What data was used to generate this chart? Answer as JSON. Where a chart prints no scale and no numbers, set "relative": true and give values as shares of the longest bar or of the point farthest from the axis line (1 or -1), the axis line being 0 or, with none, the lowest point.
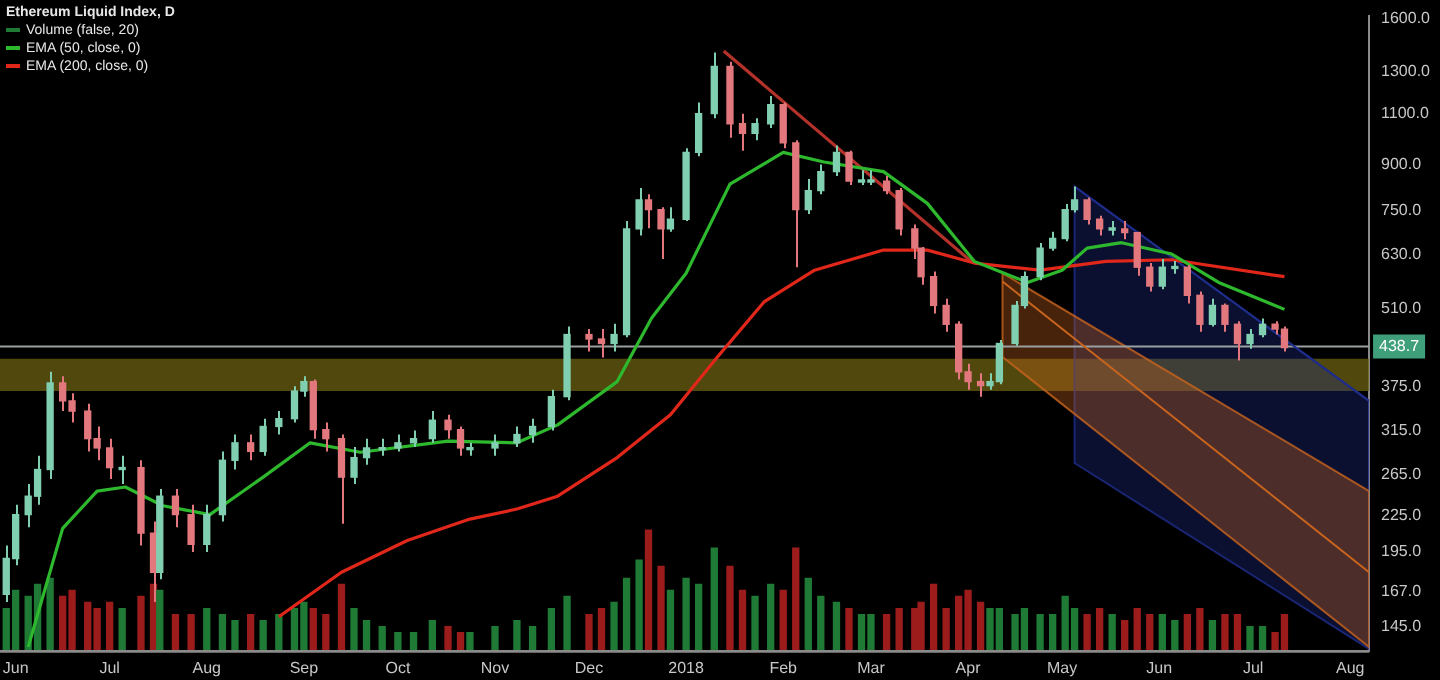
{
  "chart_data": [
    {
      "type": "candlestick",
      "title": "Ethereum Liquid Index, D",
      "x": [
        "2017-05-29",
        "2017-06-01",
        "2017-06-05",
        "2017-06-08",
        "2017-06-12",
        "2017-06-16",
        "2017-06-19",
        "2017-06-24",
        "2017-06-27",
        "2017-07-01",
        "2017-07-05",
        "2017-07-11",
        "2017-07-15",
        "2017-07-17",
        "2017-07-22",
        "2017-07-27",
        "2017-08-01",
        "2017-08-06",
        "2017-08-10",
        "2017-08-15",
        "2017-08-19",
        "2017-08-24",
        "2017-08-29",
        "2017-09-01",
        "2017-09-04",
        "2017-09-08",
        "2017-09-13",
        "2017-09-17",
        "2017-09-21",
        "2017-09-26",
        "2017-10-01",
        "2017-10-06",
        "2017-10-12",
        "2017-10-17",
        "2017-10-21",
        "2017-10-24",
        "2017-11-01",
        "2017-11-08",
        "2017-11-13",
        "2017-11-19",
        "2017-11-24",
        "2017-12-01",
        "2017-12-05",
        "2017-12-09",
        "2017-12-13",
        "2017-12-17",
        "2017-12-20",
        "2017-12-24",
        "2017-12-27",
        "2018-01-01",
        "2018-01-05",
        "2018-01-10",
        "2018-01-15",
        "2018-01-19",
        "2018-01-23",
        "2018-01-28",
        "2018-02-01",
        "2018-02-05",
        "2018-02-09",
        "2018-02-13",
        "2018-02-18",
        "2018-02-22",
        "2018-02-26",
        "2018-03-01",
        "2018-03-06",
        "2018-03-10",
        "2018-03-15",
        "2018-03-17",
        "2018-03-21",
        "2018-03-25",
        "2018-03-29",
        "2018-04-01",
        "2018-04-05",
        "2018-04-08",
        "2018-04-11",
        "2018-04-16",
        "2018-04-19",
        "2018-04-24",
        "2018-04-28",
        "2018-05-02",
        "2018-05-05",
        "2018-05-09",
        "2018-05-13",
        "2018-05-17",
        "2018-05-21",
        "2018-05-25",
        "2018-05-29",
        "2018-06-02",
        "2018-06-06",
        "2018-06-10",
        "2018-06-14",
        "2018-06-18",
        "2018-06-22",
        "2018-06-26",
        "2018-06-30",
        "2018-07-04",
        "2018-07-08",
        "2018-07-11"
      ],
      "series": [
        {
          "type": "candlestick",
          "colors": [
            "#7fcfb0",
            "#7fcfb0",
            "#7fcfb0",
            "#7fcfb0",
            "#7fcfb0",
            "#e2777d",
            "#e2777d",
            "#e2777d",
            "#e2777d",
            "#e2777d",
            "#7fcfb0",
            "#e2777d",
            "#e2777d",
            "#7fcfb0",
            "#e2777d",
            "#e2777d",
            "#7fcfb0",
            "#7fcfb0",
            "#7fcfb0",
            "#e2777d",
            "#7fcfb0",
            "#7fcfb0",
            "#7fcfb0",
            "#7fcfb0",
            "#e2777d",
            "#e2777d",
            "#e2777d",
            "#7fcfb0",
            "#7fcfb0",
            "#7fcfb0",
            "#7fcfb0",
            "#7fcfb0",
            "#7fcfb0",
            "#e2777d",
            "#e2777d",
            "#7fcfb0",
            "#7fcfb0",
            "#7fcfb0",
            "#7fcfb0",
            "#7fcfb0",
            "#7fcfb0",
            "#e2777d",
            "#e2777d",
            "#7fcfb0",
            "#7fcfb0",
            "#7fcfb0",
            "#e2777d",
            "#e2777d",
            "#7fcfb0",
            "#7fcfb0",
            "#7fcfb0",
            "#7fcfb0",
            "#e2777d",
            "#e2777d",
            "#7fcfb0",
            "#7fcfb0",
            "#e2777d",
            "#e2777d",
            "#7fcfb0",
            "#7fcfb0",
            "#7fcfb0",
            "#e2777d",
            "#7fcfb0",
            "#7fcfb0",
            "#e2777d",
            "#e2777d",
            "#e2777d",
            "#e2777d",
            "#e2777d",
            "#e2777d",
            "#e2777d",
            "#e2777d",
            "#e2777d",
            "#7fcfb0",
            "#7fcfb0",
            "#7fcfb0",
            "#7fcfb0",
            "#7fcfb0",
            "#7fcfb0",
            "#7fcfb0",
            "#7fcfb0",
            "#e2777d",
            "#e2777d",
            "#7fcfb0",
            "#e2777d",
            "#e2777d",
            "#e2777d",
            "#7fcfb0",
            "#7fcfb0",
            "#e2777d",
            "#e2777d",
            "#7fcfb0",
            "#e2777d",
            "#e2777d",
            "#7fcfb0",
            "#7fcfb0",
            "#e2777d",
            "#e2777d"
          ],
          "ohlc": [
            [
              165,
              200,
              160,
              190
            ],
            [
              190,
              235,
              185,
              226
            ],
            [
              226,
              255,
              215,
              243
            ],
            [
              243,
              285,
              235,
              270
            ],
            [
              270,
              397,
              260,
              380
            ],
            [
              380,
              390,
              340,
              354
            ],
            [
              354,
              365,
              325,
              340
            ],
            [
              340,
              350,
              290,
              305
            ],
            [
              305,
              320,
              280,
              294
            ],
            [
              294,
              305,
              260,
              272
            ],
            [
              270,
              285,
              255,
              272
            ],
            [
              272,
              280,
              200,
              210
            ],
            [
              210,
              220,
              160,
              180
            ],
            [
              180,
              250,
              175,
              243
            ],
            [
              243,
              250,
              215,
              226
            ],
            [
              226,
              235,
              195,
              201
            ],
            [
              201,
              235,
              195,
              226
            ],
            [
              226,
              290,
              220,
              280
            ],
            [
              280,
              310,
              270,
              300
            ],
            [
              300,
              310,
              280,
              290
            ],
            [
              290,
              330,
              285,
              320
            ],
            [
              320,
              340,
              310,
              330
            ],
            [
              330,
              375,
              325,
              368
            ],
            [
              368,
              390,
              360,
              382
            ],
            [
              382,
              385,
              305,
              316
            ],
            [
              316,
              325,
              290,
              305
            ],
            [
              305,
              310,
              218,
              262
            ],
            [
              262,
              295,
              255,
              283
            ],
            [
              283,
              305,
              275,
              294
            ],
            [
              292,
              305,
              285,
              294
            ],
            [
              294,
              310,
              290,
              300
            ],
            [
              300,
              315,
              295,
              305
            ],
            [
              305,
              340,
              300,
              328
            ],
            [
              328,
              335,
              305,
              316
            ],
            [
              316,
              320,
              285,
              294
            ],
            [
              292,
              300,
              285,
              294
            ],
            [
              294,
              310,
              285,
              300
            ],
            [
              300,
              320,
              295,
              310
            ],
            [
              310,
              330,
              300,
              320
            ],
            [
              320,
              370,
              315,
              360
            ],
            [
              360,
              475,
              355,
              460
            ],
            [
              460,
              470,
              430,
              452
            ],
            [
              452,
              470,
              420,
              444
            ],
            [
              444,
              480,
              430,
              460
            ],
            [
              460,
              720,
              455,
              698
            ],
            [
              698,
              820,
              680,
              783
            ],
            [
              783,
              800,
              700,
              753
            ],
            [
              753,
              760,
              620,
              698
            ],
            [
              698,
              760,
              690,
              725
            ],
            [
              725,
              960,
              720,
              944
            ],
            [
              944,
              1150,
              930,
              1100
            ],
            [
              1100,
              1400,
              1080,
              1325
            ],
            [
              1325,
              1350,
              1000,
              1057
            ],
            [
              1057,
              1100,
              950,
              1018
            ],
            [
              1018,
              1080,
              990,
              1057
            ],
            [
              1057,
              1180,
              1040,
              1140
            ],
            [
              1140,
              1150,
              960,
              980
            ],
            [
              980,
              990,
              600,
              753
            ],
            [
              753,
              850,
              740,
              812
            ],
            [
              812,
              900,
              800,
              875
            ],
            [
              875,
              970,
              860,
              944
            ],
            [
              944,
              950,
              830,
              843
            ],
            [
              840,
              880,
              830,
              843
            ],
            [
              840,
              880,
              830,
              843
            ],
            [
              843,
              860,
              800,
              812
            ],
            [
              812,
              820,
              680,
              698
            ],
            [
              698,
              710,
              620,
              647
            ],
            [
              647,
              650,
              560,
              578
            ],
            [
              578,
              590,
              500,
              516
            ],
            [
              516,
              530,
              465,
              479
            ],
            [
              479,
              485,
              385,
              397
            ],
            [
              397,
              410,
              370,
              382
            ],
            [
              382,
              395,
              360,
              376
            ],
            [
              376,
              395,
              370,
              382
            ],
            [
              382,
              450,
              378,
              444
            ],
            [
              444,
              525,
              440,
              516
            ],
            [
              516,
              590,
              510,
              578
            ],
            [
              578,
              660,
              570,
              647
            ],
            [
              647,
              690,
              640,
              672
            ],
            [
              672,
              770,
              665,
              753
            ],
            [
              753,
              825,
              745,
              783
            ],
            [
              783,
              790,
              710,
              725
            ],
            [
              725,
              735,
              680,
              698
            ],
            [
              695,
              720,
              680,
              698
            ],
            [
              698,
              720,
              670,
              688
            ],
            [
              688,
              690,
              580,
              600
            ],
            [
              600,
              610,
              545,
              557
            ],
            [
              557,
              620,
              550,
              600
            ],
            [
              597,
              615,
              585,
              600
            ],
            [
              600,
              605,
              520,
              537
            ],
            [
              537,
              545,
              465,
              479
            ],
            [
              479,
              530,
              475,
              516
            ],
            [
              516,
              520,
              465,
              479
            ],
            [
              479,
              485,
              415,
              444
            ],
            [
              444,
              470,
              435,
              460
            ],
            [
              460,
              490,
              455,
              479
            ],
            [
              479,
              485,
              460,
              470
            ],
            [
              470,
              475,
              430,
              437
            ]
          ]
        },
        {
          "type": "line",
          "name": "EMA (50, close, 0)",
          "color": "#2eb82e",
          "x": [
            "2017-06-05",
            "2017-06-16",
            "2017-06-27",
            "2017-07-06",
            "2017-07-18",
            "2017-08-02",
            "2017-08-19",
            "2017-09-03",
            "2017-09-19",
            "2017-10-17",
            "2017-11-08",
            "2017-11-21",
            "2017-12-10",
            "2017-12-21",
            "2018-01-01",
            "2018-01-15",
            "2018-02-01",
            "2018-02-14",
            "2018-03-05",
            "2018-03-19",
            "2018-04-03",
            "2018-04-20",
            "2018-05-01",
            "2018-05-09",
            "2018-05-20",
            "2018-06-05",
            "2018-06-20",
            "2018-07-11"
          ],
          "values": [
            134,
            214,
            248,
            252,
            234,
            226,
            262,
            300,
            289,
            302,
            300,
            322,
            382,
            491,
            586,
            833,
            944,
            909,
            875,
            772,
            614,
            565,
            593,
            647,
            661,
            632,
            565,
            508
          ]
        },
        {
          "type": "line",
          "name": "EMA (200, close, 0)",
          "color": "#e0271a",
          "x": [
            "2017-08-24",
            "2017-09-13",
            "2017-10-04",
            "2017-10-24",
            "2017-11-08",
            "2017-11-21",
            "2017-12-10",
            "2017-12-27",
            "2018-01-11",
            "2018-01-26",
            "2018-02-11",
            "2018-03-05",
            "2018-03-19",
            "2018-04-03",
            "2018-04-24",
            "2018-05-15",
            "2018-06-05",
            "2018-07-11"
          ],
          "values": [
            151,
            180,
            204,
            222,
            231,
            243,
            283,
            335,
            421,
            524,
            593,
            642,
            642,
            610,
            593,
            614,
            618,
            578
          ]
        },
        {
          "type": "line",
          "color": "#b5322a",
          "x": [
            "2018-01-13",
            "2018-04-02"
          ],
          "values": [
            1409,
            614
          ]
        },
        {
          "type": "line",
          "color": "#1f2d8a",
          "x": [
            "2018-05-05",
            "2018-08-07"
          ],
          "values": [
            825,
            354
          ],
          "upper": [
            825,
            354
          ],
          "lower": [
            277,
            133
          ]
        },
        {
          "type": "line",
          "color": "#c8641e",
          "x": [
            "2018-04-12",
            "2018-08-07"
          ],
          "values": [
            567,
            180
          ],
          "upper": [
            586,
            248
          ],
          "lower": [
            421,
            134
          ]
        }
      ],
      "ylim": [
        132,
        1620
      ],
      "log": true,
      "yticks": [
        {
          "value": 1600,
          "label": "1600.0"
        },
        {
          "value": 1300,
          "label": "1300.0"
        },
        {
          "value": 1100,
          "label": "1100.0"
        },
        {
          "value": 900,
          "label": "900.0"
        },
        {
          "value": 750,
          "label": "750.0"
        },
        {
          "value": 630,
          "label": "630.0"
        },
        {
          "value": 510,
          "label": "510.0"
        },
        {
          "value": 375,
          "label": "375.0"
        },
        {
          "value": 315,
          "label": "315.0"
        },
        {
          "value": 265,
          "label": "265.0"
        },
        {
          "value": 225,
          "label": "225.0"
        },
        {
          "value": 195,
          "label": "195.0"
        },
        {
          "value": 167,
          "label": "167.0"
        },
        {
          "value": 145,
          "label": "145.0"
        }
      ],
      "xlim": [
        "2017-05-27",
        "2018-08-07"
      ],
      "xticks": [
        {
          "value": "2017-06-01",
          "label": "Jun"
        },
        {
          "value": "2017-07-01",
          "label": "Jul"
        },
        {
          "value": "2017-08-01",
          "label": "Aug"
        },
        {
          "value": "2017-09-01",
          "label": "Sep"
        },
        {
          "value": "2017-10-01",
          "label": "Oct"
        },
        {
          "value": "2017-11-01",
          "label": "Nov"
        },
        {
          "value": "2017-12-01",
          "label": "Dec"
        },
        {
          "value": "2018-01-01",
          "label": "2018"
        },
        {
          "value": "2018-02-01",
          "label": "Feb"
        },
        {
          "value": "2018-03-01",
          "label": "Mar"
        },
        {
          "value": "2018-04-01",
          "label": "Apr"
        },
        {
          "value": "2018-05-01",
          "label": "May"
        },
        {
          "value": "2018-06-01",
          "label": "Jun"
        },
        {
          "value": "2018-07-01",
          "label": "Jul"
        },
        {
          "value": "2018-08-01",
          "label": "Aug"
        }
      ],
      "ref_lines": [
        {
          "axis": "y",
          "value": 438.7,
          "label": "438.7",
          "color": "#9aa0a0"
        }
      ],
      "bands": [
        {
          "axis": "y",
          "from": 368,
          "to": 418,
          "color": "#6b6010"
        }
      ],
      "grid": false,
      "legend": "top left"
    },
    {
      "type": "bar",
      "relative": true,
      "tick_labels": false,
      "legend": "top left",
      "xlim": [
        "2017-05-27",
        "2018-08-07"
      ],
      "x": [
        "2017-05-29",
        "2017-06-01",
        "2017-06-05",
        "2017-06-08",
        "2017-06-12",
        "2017-06-16",
        "2017-06-19",
        "2017-06-24",
        "2017-06-27",
        "2017-07-01",
        "2017-07-05",
        "2017-07-11",
        "2017-07-15",
        "2017-07-17",
        "2017-07-22",
        "2017-07-27",
        "2017-08-01",
        "2017-08-06",
        "2017-08-10",
        "2017-08-15",
        "2017-08-19",
        "2017-08-24",
        "2017-08-29",
        "2017-09-01",
        "2017-09-04",
        "2017-09-08",
        "2017-09-13",
        "2017-09-17",
        "2017-09-21",
        "2017-09-26",
        "2017-10-01",
        "2017-10-06",
        "2017-10-12",
        "2017-10-17",
        "2017-10-21",
        "2017-10-24",
        "2017-11-01",
        "2017-11-08",
        "2017-11-13",
        "2017-11-19",
        "2017-11-24",
        "2017-12-01",
        "2017-12-05",
        "2017-12-09",
        "2017-12-13",
        "2017-12-17",
        "2017-12-20",
        "2017-12-24",
        "2017-12-27",
        "2018-01-01",
        "2018-01-05",
        "2018-01-10",
        "2018-01-15",
        "2018-01-19",
        "2018-01-23",
        "2018-01-28",
        "2018-02-01",
        "2018-02-05",
        "2018-02-09",
        "2018-02-13",
        "2018-02-18",
        "2018-02-22",
        "2018-02-26",
        "2018-03-01",
        "2018-03-06",
        "2018-03-10",
        "2018-03-15",
        "2018-03-17",
        "2018-03-21",
        "2018-03-25",
        "2018-03-29",
        "2018-04-01",
        "2018-04-05",
        "2018-04-08",
        "2018-04-11",
        "2018-04-16",
        "2018-04-19",
        "2018-04-24",
        "2018-04-28",
        "2018-05-02",
        "2018-05-05",
        "2018-05-09",
        "2018-05-13",
        "2018-05-17",
        "2018-05-21",
        "2018-05-25",
        "2018-05-29",
        "2018-06-02",
        "2018-06-06",
        "2018-06-10",
        "2018-06-14",
        "2018-06-18",
        "2018-06-22",
        "2018-06-26",
        "2018-06-30",
        "2018-07-04",
        "2018-07-08",
        "2018-07-11"
      ],
      "series": [
        {
          "name": "Volume (false, 20)",
          "values": [
            0.35,
            0.5,
            0.45,
            0.55,
            0.6,
            0.45,
            0.5,
            0.4,
            0.35,
            0.4,
            0.35,
            0.45,
            0.55,
            0.5,
            0.3,
            0.3,
            0.35,
            0.3,
            0.25,
            0.3,
            0.25,
            0.3,
            0.35,
            0.4,
            0.35,
            0.3,
            0.55,
            0.35,
            0.25,
            0.2,
            0.15,
            0.15,
            0.25,
            0.2,
            0.15,
            0.15,
            0.2,
            0.25,
            0.2,
            0.35,
            0.45,
            0.3,
            0.35,
            0.4,
            0.6,
            0.75,
            1,
            0.7,
            0.5,
            0.6,
            0.55,
            0.85,
            0.7,
            0.5,
            0.45,
            0.55,
            0.5,
            0.85,
            0.6,
            0.45,
            0.4,
            0.35,
            0.3,
            0.3,
            0.3,
            0.35,
            0.35,
            0.4,
            0.55,
            0.35,
            0.45,
            0.5,
            0.4,
            0.35,
            0.35,
            0.3,
            0.35,
            0.3,
            0.3,
            0.45,
            0.35,
            0.3,
            0.35,
            0.3,
            0.25,
            0.35,
            0.3,
            0.3,
            0.25,
            0.3,
            0.35,
            0.25,
            0.3,
            0.3,
            0.2,
            0.2,
            0.15,
            0.3
          ],
          "colors": [
            "#1e7a35",
            "#1e7a35",
            "#1e7a35",
            "#1e7a35",
            "#1e7a35",
            "#9c1c1c",
            "#9c1c1c",
            "#9c1c1c",
            "#9c1c1c",
            "#9c1c1c",
            "#1e7a35",
            "#9c1c1c",
            "#9c1c1c",
            "#1e7a35",
            "#9c1c1c",
            "#9c1c1c",
            "#1e7a35",
            "#1e7a35",
            "#1e7a35",
            "#9c1c1c",
            "#1e7a35",
            "#1e7a35",
            "#1e7a35",
            "#1e7a35",
            "#9c1c1c",
            "#9c1c1c",
            "#9c1c1c",
            "#1e7a35",
            "#1e7a35",
            "#1e7a35",
            "#1e7a35",
            "#1e7a35",
            "#1e7a35",
            "#9c1c1c",
            "#9c1c1c",
            "#1e7a35",
            "#1e7a35",
            "#1e7a35",
            "#1e7a35",
            "#1e7a35",
            "#1e7a35",
            "#9c1c1c",
            "#9c1c1c",
            "#1e7a35",
            "#1e7a35",
            "#1e7a35",
            "#9c1c1c",
            "#9c1c1c",
            "#1e7a35",
            "#1e7a35",
            "#1e7a35",
            "#1e7a35",
            "#9c1c1c",
            "#9c1c1c",
            "#1e7a35",
            "#1e7a35",
            "#9c1c1c",
            "#9c1c1c",
            "#1e7a35",
            "#1e7a35",
            "#1e7a35",
            "#9c1c1c",
            "#1e7a35",
            "#1e7a35",
            "#9c1c1c",
            "#9c1c1c",
            "#9c1c1c",
            "#9c1c1c",
            "#9c1c1c",
            "#9c1c1c",
            "#9c1c1c",
            "#9c1c1c",
            "#9c1c1c",
            "#1e7a35",
            "#1e7a35",
            "#1e7a35",
            "#1e7a35",
            "#1e7a35",
            "#1e7a35",
            "#1e7a35",
            "#1e7a35",
            "#9c1c1c",
            "#9c1c1c",
            "#1e7a35",
            "#9c1c1c",
            "#9c1c1c",
            "#9c1c1c",
            "#1e7a35",
            "#1e7a35",
            "#9c1c1c",
            "#9c1c1c",
            "#1e7a35",
            "#9c1c1c",
            "#9c1c1c",
            "#1e7a35",
            "#1e7a35",
            "#9c1c1c",
            "#9c1c1c"
          ]
        }
      ]
    }
  ]
}
